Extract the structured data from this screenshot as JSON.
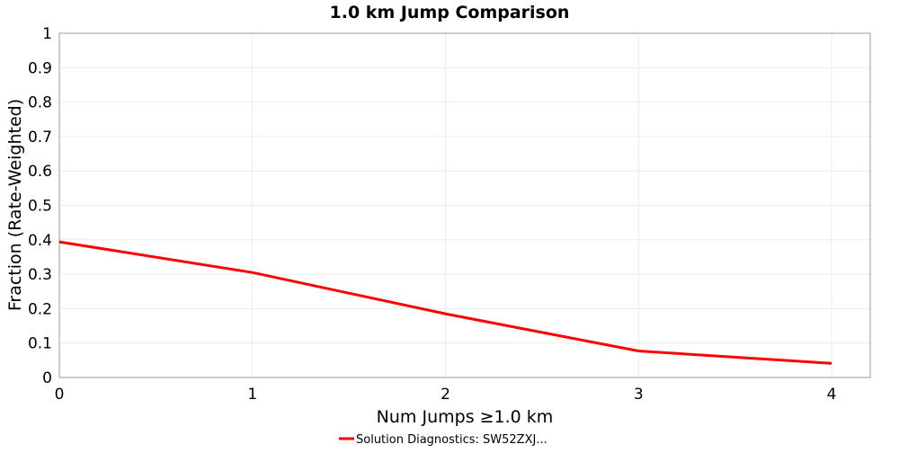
{
  "chart_data": {
    "type": "line",
    "title": "1.0 km Jump Comparison",
    "xlabel": "Num Jumps ≥1.0 km",
    "ylabel": "Fraction (Rate-Weighted)",
    "xlim": [
      0,
      4.2
    ],
    "ylim": [
      0,
      1
    ],
    "xticks": [
      0,
      1,
      2,
      3,
      4
    ],
    "yticks": [
      0,
      0.1,
      0.2,
      0.3,
      0.4,
      0.5,
      0.6,
      0.7,
      0.8,
      0.9,
      1
    ],
    "ytick_labels": [
      "0",
      "0.1",
      "0.2",
      "0.3",
      "0.4",
      "0.5",
      "0.6",
      "0.7",
      "0.8",
      "0.9",
      "1"
    ],
    "xtick_labels": [
      "0",
      "1",
      "2",
      "3",
      "4"
    ],
    "grid": true,
    "legend_position": "bottom-center",
    "series": [
      {
        "name": "Solution Diagnostics: SW52ZXJ...",
        "color": "#ff0000",
        "x": [
          0,
          1,
          2,
          3,
          4
        ],
        "y": [
          0.394,
          0.305,
          0.185,
          0.077,
          0.041
        ]
      }
    ]
  }
}
